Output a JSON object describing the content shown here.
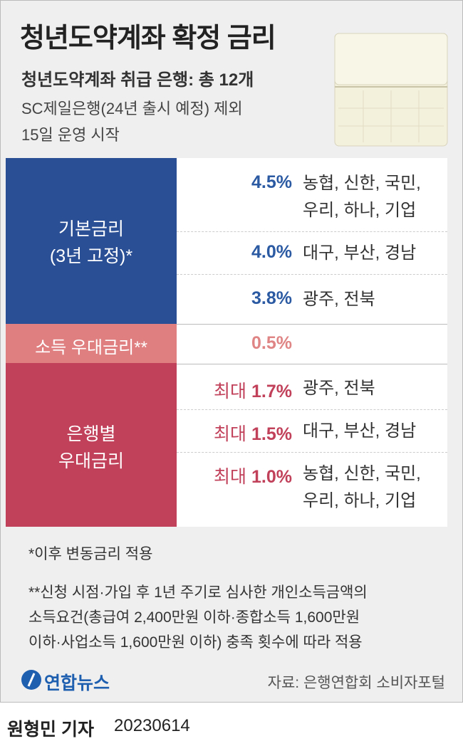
{
  "header": {
    "title": "청년도약계좌 확정 금리",
    "subtitle": "청년도약계좌 취급 은행: 총 12개",
    "notes": [
      "SC제일은행(24년 출시 예정) 제외",
      "15일 운영 시작"
    ]
  },
  "table": {
    "groups": [
      {
        "label": [
          "기본금리",
          "(3년 고정)*"
        ],
        "rows": [
          {
            "rate": "4.5%",
            "banks": [
              "농협, 신한, 국민,",
              "우리, 하나, 기업"
            ]
          },
          {
            "rate": "4.0%",
            "banks": [
              "대구, 부산, 경남"
            ]
          },
          {
            "rate": "3.8%",
            "banks": [
              "광주, 전북"
            ]
          }
        ]
      },
      {
        "label": [
          "소득 우대금리**"
        ],
        "rows": [
          {
            "rate": "0.5%"
          }
        ]
      },
      {
        "label": [
          "은행별",
          "우대금리"
        ],
        "rows": [
          {
            "prefix": "최대",
            "rate": "1.7%",
            "banks": [
              "광주, 전북"
            ]
          },
          {
            "prefix": "최대",
            "rate": "1.5%",
            "banks": [
              "대구, 부산, 경남"
            ]
          },
          {
            "prefix": "최대",
            "rate": "1.0%",
            "banks": [
              "농협, 신한, 국민,",
              "우리, 하나, 기업"
            ]
          }
        ]
      }
    ]
  },
  "footnotes": [
    [
      "*이후 변동금리 적용"
    ],
    [
      "**신청 시점·가입 후 1년 주기로 심사한 개인소득금액의",
      "소득요건(총급여 2,400만원 이하·종합소득 1,600만원",
      "이하·사업소득 1,600만원 이하) 충족 횟수에 따라 적용"
    ]
  ],
  "footer": {
    "logo": "연합뉴스",
    "source": "자료: 은행연합회 소비자포털",
    "byline": "원형민 기자",
    "date": "20230614"
  }
}
